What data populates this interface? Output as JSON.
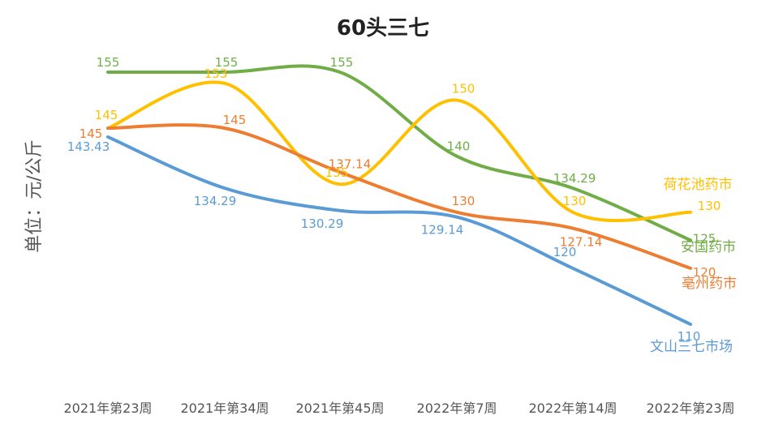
{
  "chart_data": {
    "type": "line",
    "title": "60头三七",
    "ylabel": "单位：元/公斤",
    "xlabel": "",
    "categories": [
      "2021年第23周",
      "2021年第34周",
      "2021年第45周",
      "2022年第7周",
      "2022年第14周",
      "2022年第23周"
    ],
    "ylim": [
      95,
      165
    ],
    "grid": false,
    "legend": "end-of-line labels",
    "series": [
      {
        "name": "安国药市",
        "color": "#70AD47",
        "values": [
          155,
          155,
          155,
          140,
          134.29,
          125
        ],
        "labels": [
          "155",
          "155",
          "155",
          "140",
          "134.29",
          "125"
        ]
      },
      {
        "name": "荷花池药市",
        "color": "#FFC000",
        "values": [
          145,
          153,
          135,
          150,
          130,
          130
        ],
        "labels": [
          "145",
          "153",
          "135",
          "150",
          "130",
          "130"
        ]
      },
      {
        "name": "亳州药市",
        "color": "#ED7D31",
        "values": [
          145,
          145,
          137.14,
          130,
          127.14,
          120
        ],
        "labels": [
          "145",
          "145",
          "137.14",
          "130",
          "127.14",
          "120"
        ]
      },
      {
        "name": "文山三七市场",
        "color": "#5B9BD5",
        "values": [
          143.43,
          134.29,
          130.29,
          129.14,
          120,
          110
        ],
        "labels": [
          "143.43",
          "134.29",
          "130.29",
          "129.14",
          "120",
          "110"
        ]
      }
    ]
  }
}
